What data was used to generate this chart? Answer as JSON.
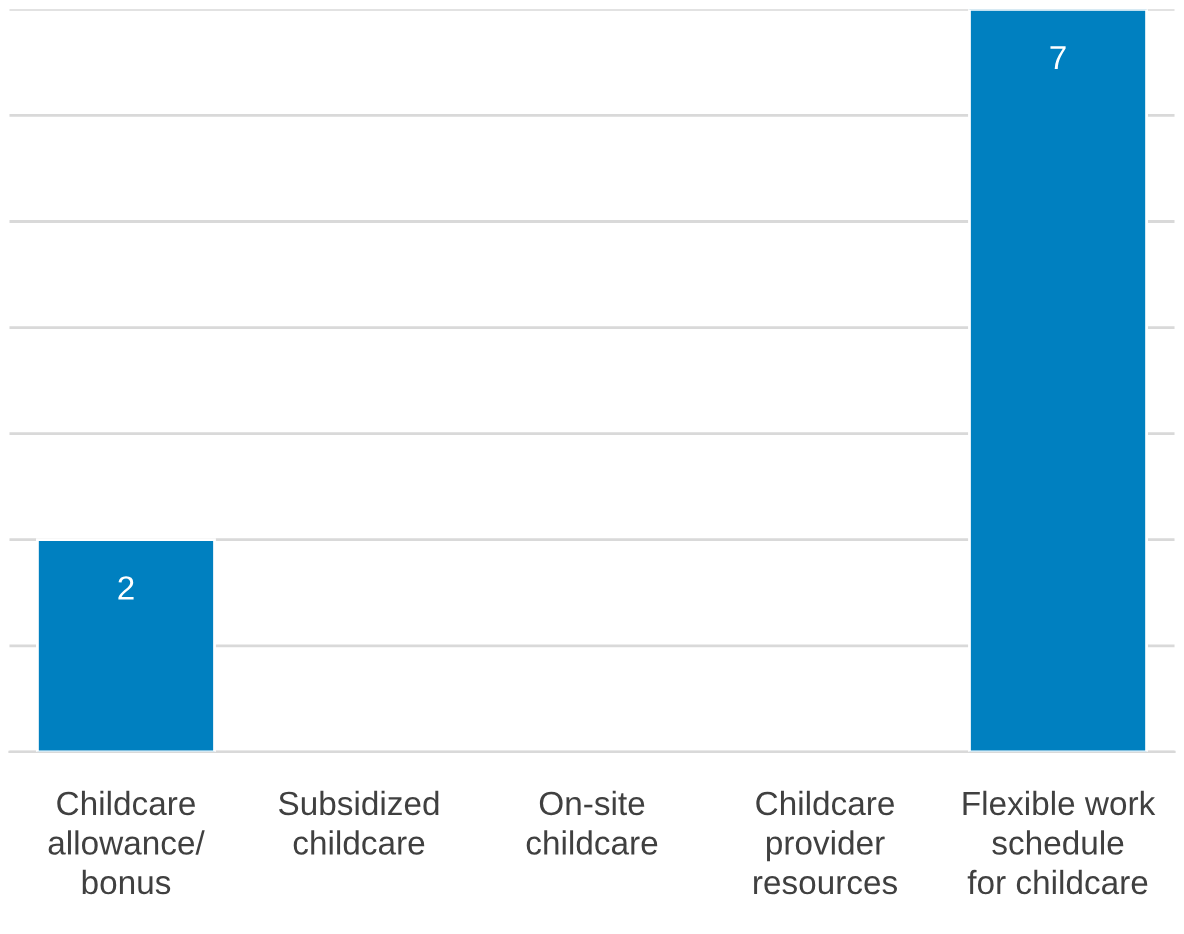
{
  "chart_data": {
    "type": "bar",
    "categories": [
      "Childcare\nallowance/\nbonus",
      "Subsidized\nchildcare",
      "On-site\nchildcare",
      "Childcare\nprovider\nresources",
      "Flexible work\nschedule\nfor childcare"
    ],
    "values": [
      2,
      null,
      null,
      null,
      7
    ],
    "value_labels": [
      "2",
      null,
      null,
      null,
      "7"
    ],
    "color": "#0080c0",
    "ylim": [
      0,
      7
    ],
    "yticks": [
      0,
      1,
      2,
      3,
      4,
      5,
      6,
      7
    ],
    "grid": "y",
    "tick_labels": "x"
  }
}
